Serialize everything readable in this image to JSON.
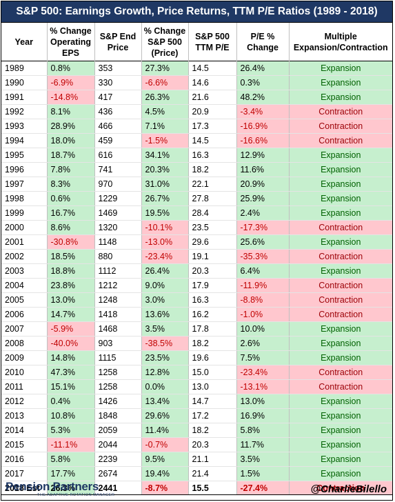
{
  "title": "S&P 500: Earnings Growth, Price Returns, TTM P/E Ratios (1989 - 2018)",
  "headers": [
    [
      "Year"
    ],
    [
      "% Change",
      "Operating",
      "EPS"
    ],
    [
      "S&P End",
      "Price"
    ],
    [
      "% Change",
      "S&P 500",
      "(Price)"
    ],
    [
      "S&P 500",
      "TTM P/E"
    ],
    [
      "P/E %",
      "Change"
    ],
    [
      "Multiple",
      "Expansion/Contraction"
    ]
  ],
  "colors": {
    "header_bg": "#1f3864",
    "positive_fill": "#c6efce",
    "negative_fill": "#ffc7ce",
    "negative_text": "#c00000",
    "expansion_text": "#006100",
    "contraction_text": "#9c0006"
  },
  "chart_data": {
    "type": "table",
    "title": "S&P 500: Earnings Growth, Price Returns, TTM P/E Ratios (1989 - 2018)",
    "columns": [
      "Year",
      "% Change Operating EPS",
      "S&P End Price",
      "% Change S&P 500 (Price)",
      "S&P 500 TTM P/E",
      "P/E % Change",
      "Multiple Expansion/Contraction"
    ],
    "rows": [
      [
        "1989",
        "0.8%",
        "353",
        "27.3%",
        "14.5",
        "26.4%",
        "Expansion"
      ],
      [
        "1990",
        "-6.9%",
        "330",
        "-6.6%",
        "14.6",
        "0.3%",
        "Expansion"
      ],
      [
        "1991",
        "-14.8%",
        "417",
        "26.3%",
        "21.6",
        "48.2%",
        "Expansion"
      ],
      [
        "1992",
        "8.1%",
        "436",
        "4.5%",
        "20.9",
        "-3.4%",
        "Contraction"
      ],
      [
        "1993",
        "28.9%",
        "466",
        "7.1%",
        "17.3",
        "-16.9%",
        "Contraction"
      ],
      [
        "1994",
        "18.0%",
        "459",
        "-1.5%",
        "14.5",
        "-16.6%",
        "Contraction"
      ],
      [
        "1995",
        "18.7%",
        "616",
        "34.1%",
        "16.3",
        "12.9%",
        "Expansion"
      ],
      [
        "1996",
        "7.8%",
        "741",
        "20.3%",
        "18.2",
        "11.6%",
        "Expansion"
      ],
      [
        "1997",
        "8.3%",
        "970",
        "31.0%",
        "22.1",
        "20.9%",
        "Expansion"
      ],
      [
        "1998",
        "0.6%",
        "1229",
        "26.7%",
        "27.8",
        "25.9%",
        "Expansion"
      ],
      [
        "1999",
        "16.7%",
        "1469",
        "19.5%",
        "28.4",
        "2.4%",
        "Expansion"
      ],
      [
        "2000",
        "8.6%",
        "1320",
        "-10.1%",
        "23.5",
        "-17.3%",
        "Contraction"
      ],
      [
        "2001",
        "-30.8%",
        "1148",
        "-13.0%",
        "29.6",
        "25.6%",
        "Expansion"
      ],
      [
        "2002",
        "18.5%",
        "880",
        "-23.4%",
        "19.1",
        "-35.3%",
        "Contraction"
      ],
      [
        "2003",
        "18.8%",
        "1112",
        "26.4%",
        "20.3",
        "6.4%",
        "Expansion"
      ],
      [
        "2004",
        "23.8%",
        "1212",
        "9.0%",
        "17.9",
        "-11.9%",
        "Contraction"
      ],
      [
        "2005",
        "13.0%",
        "1248",
        "3.0%",
        "16.3",
        "-8.8%",
        "Contraction"
      ],
      [
        "2006",
        "14.7%",
        "1418",
        "13.6%",
        "16.2",
        "-1.0%",
        "Contraction"
      ],
      [
        "2007",
        "-5.9%",
        "1468",
        "3.5%",
        "17.8",
        "10.0%",
        "Expansion"
      ],
      [
        "2008",
        "-40.0%",
        "903",
        "-38.5%",
        "18.2",
        "2.6%",
        "Expansion"
      ],
      [
        "2009",
        "14.8%",
        "1115",
        "23.5%",
        "19.6",
        "7.5%",
        "Expansion"
      ],
      [
        "2010",
        "47.3%",
        "1258",
        "12.8%",
        "15.0",
        "-23.4%",
        "Contraction"
      ],
      [
        "2011",
        "15.1%",
        "1258",
        "0.0%",
        "13.0",
        "-13.1%",
        "Contraction"
      ],
      [
        "2012",
        "0.4%",
        "1426",
        "13.4%",
        "14.7",
        "13.0%",
        "Expansion"
      ],
      [
        "2013",
        "10.8%",
        "1848",
        "29.6%",
        "17.2",
        "16.9%",
        "Expansion"
      ],
      [
        "2014",
        "5.3%",
        "2059",
        "11.4%",
        "18.2",
        "5.8%",
        "Expansion"
      ],
      [
        "2015",
        "-11.1%",
        "2044",
        "-0.7%",
        "20.3",
        "11.7%",
        "Expansion"
      ],
      [
        "2016",
        "5.8%",
        "2239",
        "9.5%",
        "21.1",
        "3.5%",
        "Expansion"
      ],
      [
        "2017",
        "17.7%",
        "2674",
        "19.4%",
        "21.4",
        "1.5%",
        "Expansion"
      ],
      [
        "2018 Est",
        "26.3%",
        "2441",
        "-8.7%",
        "15.5",
        "-27.4%",
        "Contraction"
      ]
    ]
  },
  "footer": {
    "logo_name": "Pension Partners",
    "logo_tagline": "THE ADAPTIVE ROTATION MANAGER",
    "handle": "@CharlieBilello"
  }
}
